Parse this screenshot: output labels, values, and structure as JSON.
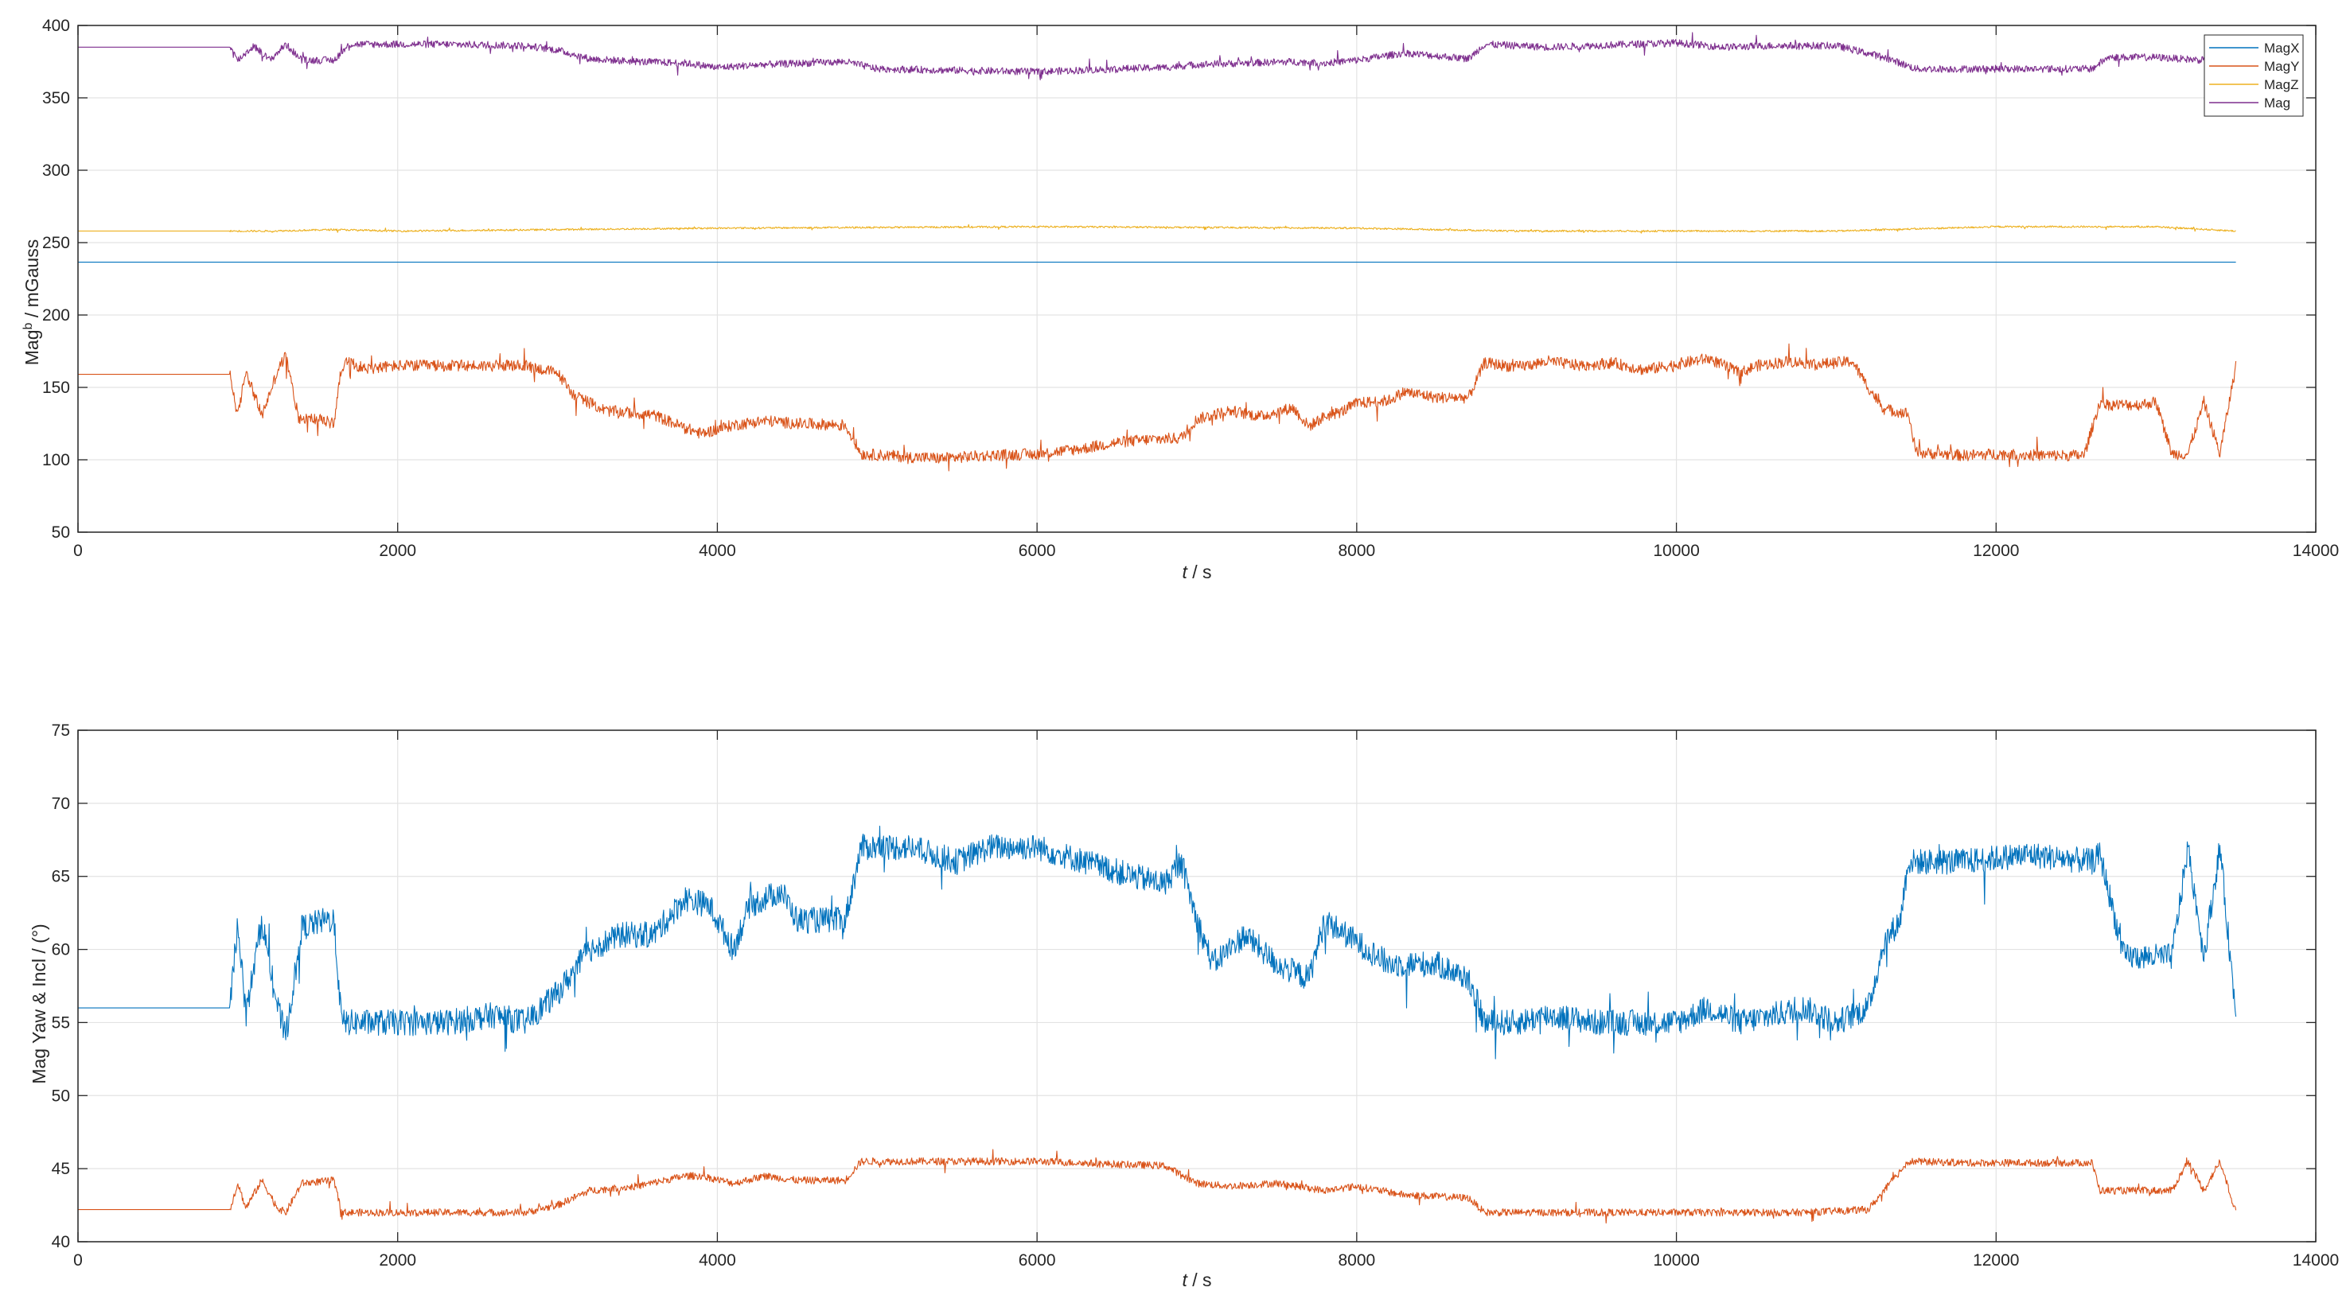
{
  "chart_data": [
    {
      "type": "line",
      "ylabel_main": "Mag",
      "ylabel_sup": "b",
      "ylabel_rest": " / mGauss",
      "xlabel_var": "t",
      "xlabel_rest": " / s",
      "xlim": [
        0,
        14000
      ],
      "ylim": [
        50,
        400
      ],
      "xticks": [
        0,
        2000,
        4000,
        6000,
        8000,
        10000,
        12000,
        14000
      ],
      "yticks": [
        50,
        100,
        150,
        200,
        250,
        300,
        350,
        400
      ],
      "grid": true,
      "legend_position": "top-right",
      "series": [
        {
          "name": "MagX",
          "color": "#0072BD",
          "x": [
            0,
            13500
          ],
          "values": [
            236.5,
            236.5
          ]
        },
        {
          "name": "MagY",
          "color": "#D95319",
          "x": [
            0,
            950,
            1000,
            1050,
            1150,
            1250,
            1300,
            1380,
            1500,
            1600,
            1650,
            1700,
            1800,
            2000,
            2400,
            2800,
            3000,
            3100,
            3300,
            3600,
            3800,
            3900,
            4100,
            4300,
            4500,
            4800,
            4900,
            5200,
            5400,
            5700,
            6000,
            6300,
            6500,
            6700,
            6900,
            7000,
            7200,
            7400,
            7600,
            7700,
            7800,
            7900,
            8000,
            8200,
            8300,
            8500,
            8700,
            8800,
            9000,
            9200,
            9400,
            9600,
            9800,
            10000,
            10200,
            10400,
            10500,
            10700,
            10900,
            11100,
            11200,
            11300,
            11450,
            11500,
            11800,
            12000,
            12300,
            12550,
            12650,
            12700,
            12900,
            13000,
            13100,
            13200,
            13300,
            13400,
            13500
          ],
          "values": [
            159,
            159,
            130,
            162,
            130,
            162,
            172,
            129,
            128,
            125,
            165,
            167,
            163,
            165,
            165,
            165,
            160,
            145,
            134,
            131,
            122,
            118,
            124,
            127,
            125,
            124,
            104,
            102,
            101,
            103,
            104,
            108,
            112,
            114,
            115,
            128,
            134,
            130,
            136,
            123,
            130,
            133,
            139,
            141,
            147,
            143,
            143,
            167,
            164,
            168,
            165,
            167,
            162,
            166,
            170,
            160,
            165,
            168,
            166,
            168,
            150,
            135,
            132,
            105,
            103,
            104,
            103,
            103,
            140,
            138,
            138,
            140,
            104,
            104,
            140,
            104,
            165
          ]
        },
        {
          "name": "MagZ",
          "color": "#EDB120",
          "x": [
            0,
            1200,
            1600,
            2000,
            4000,
            6000,
            8000,
            9000,
            10000,
            11000,
            12000,
            13000,
            13500
          ],
          "values": [
            258,
            258,
            259,
            258,
            260,
            261,
            260,
            258,
            258,
            258,
            261,
            261,
            258
          ]
        },
        {
          "name": "Mag",
          "color": "#7E2F8E",
          "x": [
            0,
            950,
            1000,
            1100,
            1200,
            1300,
            1400,
            1600,
            1700,
            1900,
            2300,
            2800,
            3000,
            3200,
            3500,
            3800,
            4000,
            4300,
            4800,
            5000,
            5500,
            6000,
            6500,
            6800,
            7000,
            7300,
            7600,
            7800,
            8000,
            8300,
            8700,
            8800,
            9200,
            9700,
            10000,
            10300,
            10600,
            11000,
            11300,
            11500,
            12000,
            12600,
            12700,
            13000,
            13300,
            13400,
            13500
          ],
          "values": [
            385,
            385,
            376,
            386,
            376,
            387,
            376,
            376,
            387,
            387,
            387,
            386,
            383,
            377,
            375,
            374,
            371,
            373,
            375,
            370,
            369,
            368,
            370,
            371,
            373,
            374,
            375,
            374,
            376,
            381,
            377,
            387,
            385,
            387,
            388,
            385,
            386,
            386,
            378,
            370,
            370,
            370,
            378,
            378,
            376,
            369,
            370
          ]
        }
      ]
    },
    {
      "type": "line",
      "ylabel": "Mag Yaw & Incl / (°)",
      "xlabel_var": "t",
      "xlabel_rest": " / s",
      "xlim": [
        0,
        14000
      ],
      "ylim": [
        40,
        75
      ],
      "xticks": [
        0,
        2000,
        4000,
        6000,
        8000,
        10000,
        12000,
        14000
      ],
      "yticks": [
        40,
        45,
        50,
        55,
        60,
        65,
        70,
        75
      ],
      "grid": true,
      "series": [
        {
          "name": "Mag Yaw",
          "color": "#0072BD",
          "x": [
            0,
            950,
            1000,
            1050,
            1150,
            1250,
            1300,
            1400,
            1550,
            1600,
            1650,
            1800,
            2000,
            2300,
            2600,
            2800,
            3000,
            3200,
            3400,
            3600,
            3800,
            3950,
            4100,
            4200,
            4400,
            4500,
            4700,
            4800,
            4900,
            5200,
            5500,
            5700,
            6000,
            6300,
            6600,
            6800,
            6900,
            7000,
            7100,
            7300,
            7500,
            7700,
            7800,
            8000,
            8200,
            8500,
            8700,
            8800,
            9000,
            9200,
            9500,
            9800,
            10000,
            10200,
            10400,
            10600,
            10800,
            11000,
            11200,
            11300,
            11400,
            11450,
            11800,
            12200,
            12600,
            12650,
            12800,
            13000,
            13100,
            13200,
            13300,
            13400,
            13500
          ],
          "values": [
            56,
            56,
            62,
            55.5,
            62,
            56,
            54,
            61.5,
            62,
            62,
            55,
            55,
            55,
            55,
            55.5,
            55,
            57,
            60,
            61,
            61,
            63.5,
            63,
            60,
            63,
            64,
            62,
            62,
            62,
            67,
            67,
            66,
            67,
            67,
            66,
            65,
            64.5,
            66,
            62,
            59,
            61,
            59,
            58,
            62,
            60.5,
            59,
            59,
            58,
            55,
            55,
            55.5,
            55,
            55,
            55,
            56,
            55,
            55.5,
            56,
            55,
            56,
            60.5,
            62,
            66,
            66,
            66.5,
            66,
            66.5,
            59.5,
            59.5,
            59.5,
            67,
            59.5,
            67,
            55.5
          ]
        },
        {
          "name": "Mag Incl",
          "color": "#D95319",
          "x": [
            0,
            950,
            1000,
            1050,
            1150,
            1250,
            1300,
            1400,
            1600,
            1650,
            2000,
            2500,
            2800,
            3000,
            3200,
            3500,
            3800,
            3900,
            4100,
            4300,
            4500,
            4800,
            4900,
            5500,
            6000,
            6500,
            6800,
            7000,
            7200,
            7500,
            7800,
            8000,
            8300,
            8700,
            8800,
            9200,
            9600,
            10000,
            10400,
            10800,
            11200,
            11300,
            11450,
            11800,
            12200,
            12600,
            12650,
            13000,
            13100,
            13200,
            13300,
            13400,
            13500
          ],
          "values": [
            42.2,
            42.2,
            44,
            42.3,
            44.2,
            42.3,
            42,
            44,
            44.2,
            42,
            42,
            42,
            42,
            42.5,
            43.5,
            43.8,
            44.5,
            44.5,
            44,
            44.5,
            44.2,
            44.2,
            45.5,
            45.5,
            45.5,
            45.3,
            45.2,
            44,
            43.8,
            44,
            43.5,
            43.8,
            43.2,
            43,
            42,
            42,
            42,
            42,
            42,
            42,
            42.2,
            43.5,
            45.5,
            45.4,
            45.4,
            45.4,
            43.5,
            43.5,
            43.5,
            45.5,
            43.5,
            45.5,
            42
          ]
        }
      ]
    }
  ]
}
